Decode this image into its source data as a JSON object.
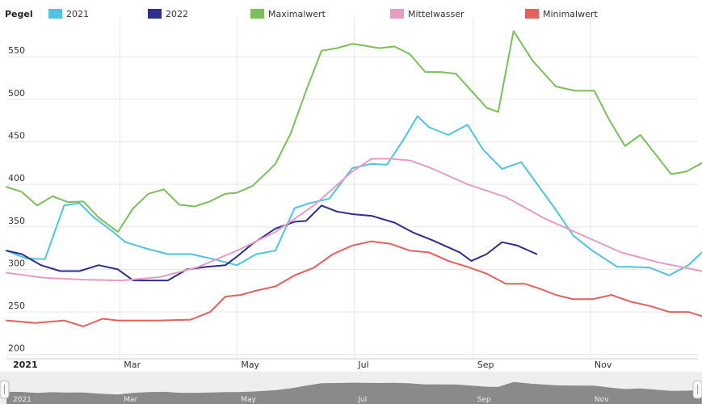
{
  "chart_data": {
    "type": "line",
    "legend_title": "Pegel",
    "legend_position": "top",
    "ylim": [
      195,
      590
    ],
    "y_ticks": [
      200,
      250,
      300,
      350,
      400,
      450,
      500,
      550
    ],
    "xlim": [
      0,
      360
    ],
    "x_ticks": [
      {
        "label": "2021",
        "day": 0,
        "bold": true
      },
      {
        "label": "Mar",
        "day": 59
      },
      {
        "label": "May",
        "day": 120
      },
      {
        "label": "Jul",
        "day": 181
      },
      {
        "label": "Sep",
        "day": 243
      },
      {
        "label": "Nov",
        "day": 304
      }
    ],
    "grid": true,
    "series": [
      {
        "name": "2021",
        "color": "#4fc3e0",
        "x": [
          0,
          10,
          20,
          30,
          38,
          45,
          55,
          62,
          72,
          84,
          96,
          108,
          120,
          130,
          140,
          150,
          158,
          168,
          180,
          190,
          198,
          206,
          214,
          220,
          230,
          240,
          248,
          258,
          268,
          278,
          286,
          295,
          305,
          318,
          325,
          335,
          345,
          355,
          362
        ],
        "y": [
          322,
          313,
          312,
          375,
          378,
          362,
          345,
          332,
          325,
          318,
          318,
          312,
          305,
          318,
          322,
          372,
          378,
          383,
          419,
          424,
          423,
          450,
          480,
          467,
          458,
          470,
          441,
          418,
          426,
          395,
          370,
          340,
          322,
          303,
          303,
          302,
          293,
          305,
          320
        ]
      },
      {
        "name": "2022",
        "color": "#2e2e8c",
        "x": [
          0,
          8,
          18,
          28,
          38,
          48,
          58,
          66,
          74,
          84,
          94,
          104,
          114,
          120,
          128,
          140,
          150,
          156,
          164,
          172,
          180,
          190,
          202,
          212,
          222,
          228,
          236,
          242,
          250,
          258,
          266,
          276
        ],
        "y": [
          322,
          318,
          305,
          298,
          298,
          305,
          300,
          287,
          287,
          287,
          300,
          303,
          305,
          315,
          330,
          348,
          356,
          357,
          375,
          368,
          365,
          363,
          355,
          343,
          334,
          328,
          320,
          310,
          318,
          332,
          328,
          318
        ]
      },
      {
        "name": "Maximalwert",
        "color": "#7bbf5a",
        "x": [
          0,
          8,
          16,
          24,
          32,
          40,
          48,
          58,
          66,
          74,
          82,
          90,
          98,
          106,
          114,
          120,
          128,
          136,
          140,
          148,
          156,
          164,
          172,
          180,
          186,
          194,
          202,
          210,
          218,
          226,
          234,
          242,
          250,
          256,
          264,
          274,
          286,
          296,
          306,
          314,
          322,
          330,
          338,
          346,
          354,
          362
        ],
        "y": [
          397,
          391,
          375,
          386,
          379,
          380,
          361,
          344,
          372,
          389,
          394,
          376,
          374,
          380,
          389,
          390,
          398,
          415,
          424,
          460,
          510,
          557,
          560,
          565,
          563,
          560,
          562,
          553,
          532,
          532,
          530,
          510,
          490,
          485,
          580,
          545,
          515,
          510,
          510,
          475,
          445,
          458,
          435,
          412,
          415,
          425
        ]
      },
      {
        "name": "Mittelwasser",
        "color": "#e89cbf",
        "x": [
          0,
          20,
          40,
          60,
          80,
          100,
          120,
          140,
          160,
          170,
          180,
          190,
          200,
          210,
          220,
          240,
          260,
          280,
          300,
          320,
          340,
          362
        ],
        "y": [
          296,
          290,
          288,
          287,
          291,
          303,
          322,
          344,
          375,
          395,
          415,
          430,
          430,
          428,
          420,
          400,
          385,
          360,
          340,
          320,
          308,
          298
        ]
      },
      {
        "name": "Minimalwert",
        "color": "#e5605a",
        "x": [
          0,
          15,
          30,
          40,
          50,
          58,
          66,
          80,
          96,
          106,
          114,
          122,
          130,
          140,
          150,
          160,
          170,
          180,
          190,
          200,
          210,
          220,
          230,
          240,
          250,
          260,
          270,
          278,
          286,
          295,
          305,
          315,
          325,
          335,
          345,
          355,
          362
        ],
        "y": [
          240,
          237,
          240,
          233,
          242,
          240,
          240,
          240,
          241,
          250,
          268,
          270,
          275,
          280,
          293,
          302,
          318,
          328,
          333,
          330,
          322,
          320,
          310,
          303,
          295,
          283,
          283,
          277,
          270,
          265,
          265,
          270,
          262,
          257,
          250,
          250,
          245
        ]
      }
    ]
  }
}
